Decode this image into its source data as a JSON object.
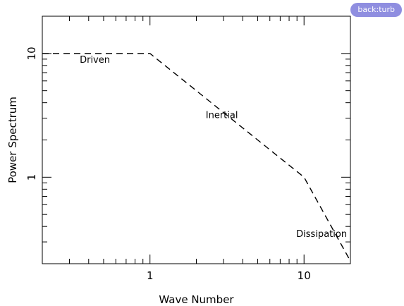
{
  "badge": {
    "label": "back:turb",
    "color": "#8f8ee0"
  },
  "chart_data": {
    "type": "line",
    "title": "",
    "xlabel": "Wave Number",
    "ylabel": "Power Spectrum",
    "xscale": "log",
    "yscale": "log",
    "xlim": [
      0.2,
      20
    ],
    "ylim": [
      0.2,
      20
    ],
    "xticks": [
      {
        "value": 1,
        "label": "1"
      },
      {
        "value": 10,
        "label": "10"
      }
    ],
    "yticks": [
      {
        "value": 1,
        "label": "1"
      },
      {
        "value": 10,
        "label": "10"
      }
    ],
    "grid": false,
    "legend": false,
    "line_style": "dashed",
    "series": [
      {
        "x": [
          0.2,
          1,
          10,
          20
        ],
        "y": [
          10,
          10,
          1,
          0.21
        ]
      }
    ],
    "annotations": [
      {
        "text": "Driven",
        "x": 0.35,
        "y": 8.4
      },
      {
        "text": "Inertial",
        "x": 2.3,
        "y": 3.0
      },
      {
        "text": "Dissipation",
        "x": 8.9,
        "y": 0.33
      }
    ]
  }
}
